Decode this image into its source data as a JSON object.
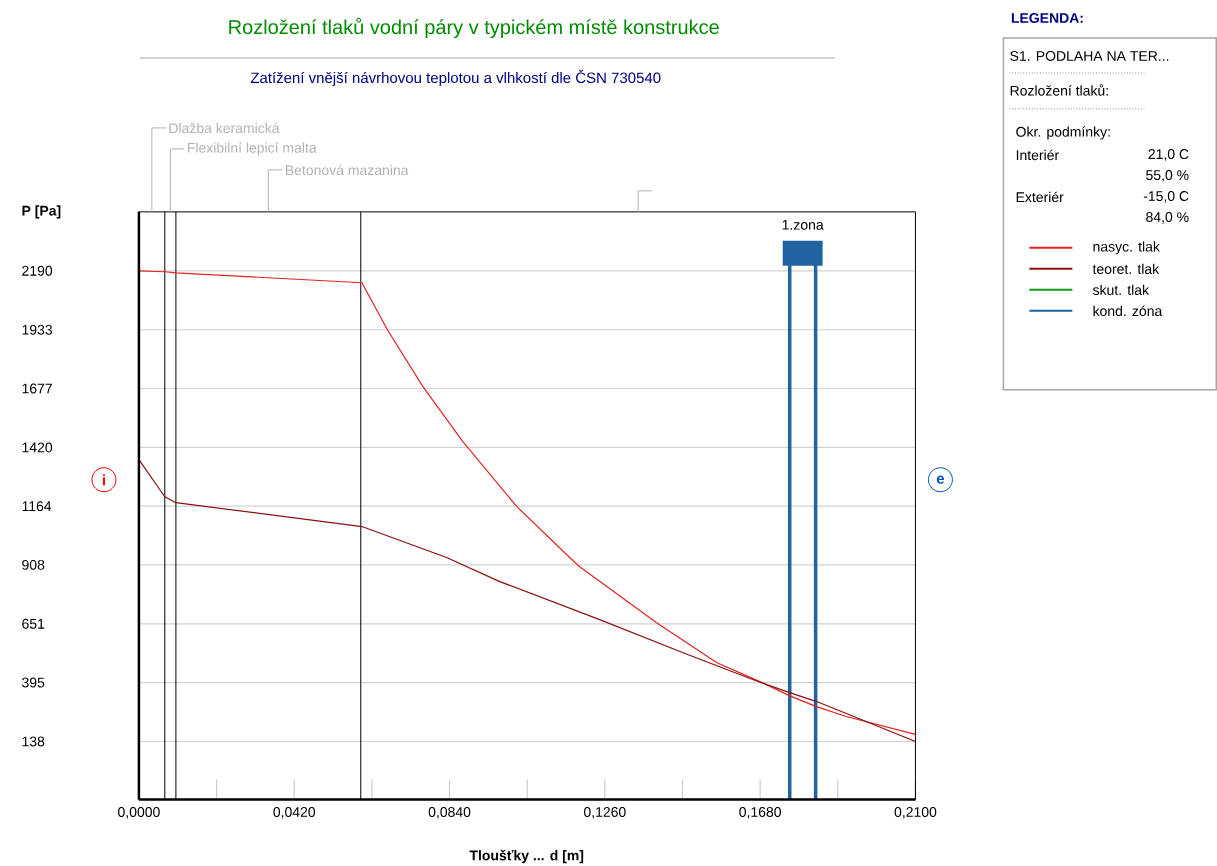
{
  "chart_data": {
    "type": "line",
    "title": "Rozložení tlaků vodní páry v typickém místě konstrukce",
    "subtitle": "Zatížení vnější návrhovou teplotou a vlhkostí dle ČSN 730540",
    "xlabel": "Tloušťky ... d [m]",
    "ylabel": "P [Pa]",
    "legend_title": "LEGENDA:",
    "series": [
      {
        "name": "nasyc. tlak",
        "color": "#e82020",
        "x": [
          0,
          0.007,
          0.01,
          0.0603,
          0.0672,
          0.0768,
          0.0876,
          0.1022,
          0.1165,
          0.1192,
          0.14,
          0.1562,
          0.1697,
          0.1759,
          0.1832,
          0.1913,
          0.2097,
          0.21
        ],
        "values": [
          2190,
          2186,
          2181,
          2138,
          1933,
          1685,
          1445,
          1162,
          940,
          900,
          656,
          482,
          386,
          338,
          290,
          247,
          170,
          168
        ]
      },
      {
        "name": "teoret. tlak",
        "color": "#8b1010",
        "x": [
          0,
          0.007,
          0.01,
          0.0603,
          0.0832,
          0.0976,
          0.1246,
          0.147,
          0.166,
          0.176,
          0.1833,
          0.21
        ],
        "values": [
          1367,
          1205,
          1179,
          1075,
          940,
          835,
          669,
          526,
          408,
          351,
          312,
          138
        ]
      },
      {
        "name": "skut. tlak",
        "color": "#119911"
      },
      {
        "name": "kond. zóna",
        "color": "#1f64a0"
      }
    ],
    "ref_lines": [
      {
        "axis": "x",
        "value": 0.007
      },
      {
        "axis": "x",
        "value": 0.01
      },
      {
        "axis": "x",
        "value": 0.06
      },
      {
        "axis": "x",
        "value": 0.176,
        "label": "1.zona",
        "color": "#1f64a0"
      },
      {
        "axis": "x",
        "value": 0.183,
        "color": "#1f64a0"
      }
    ],
    "annotations": [
      "i",
      "e",
      "Dlažba keramická",
      "Flexibilní lepicí malta",
      "Betonová mazanina",
      "S1. PODLAHA NA TER...",
      "Rozložení tlaků:",
      "Okr. podmínky:",
      "Interiér",
      "21,0 C",
      "55,0 %",
      "Exteriér",
      "-15,0 C",
      "84,0 %"
    ],
    "xlim": [
      0,
      0.21
    ],
    "ylim": [
      -115,
      2447
    ],
    "xticks": [
      {
        "value": 0,
        "label": "0,0000"
      },
      {
        "value": 0.042,
        "label": "0,0420"
      },
      {
        "value": 0.084,
        "label": "0,0840"
      },
      {
        "value": 0.126,
        "label": "0,1260"
      },
      {
        "value": 0.168,
        "label": "0,1680"
      },
      {
        "value": 0.21,
        "label": "0,2100"
      }
    ],
    "yticks": [
      138,
      395,
      651,
      908,
      1164,
      1420,
      1677,
      1933,
      2190
    ],
    "grid": "y",
    "legend": "right",
    "line_style": "solid"
  }
}
